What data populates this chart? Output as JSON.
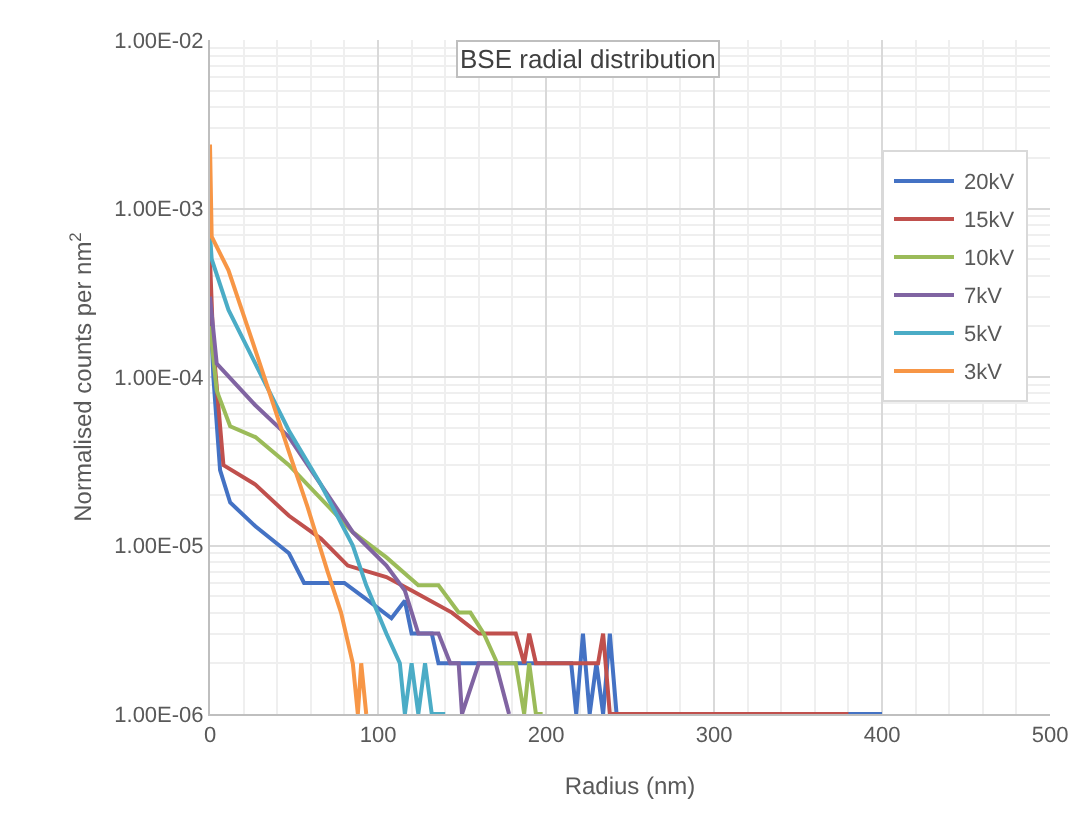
{
  "chart_data": {
    "type": "line",
    "title": "BSE radial distribution",
    "xlabel": "Radius (nm)",
    "ylabel": "Normalised counts per nm$^{2}$",
    "log": "y",
    "xlim": [
      0,
      500
    ],
    "xticks": [
      0,
      100,
      200,
      300,
      400,
      500
    ],
    "ylim": [
      1e-06,
      0.01
    ],
    "yticks": [
      {
        "value": 1e-06,
        "label": "1.00E-06"
      },
      {
        "value": 1e-05,
        "label": "1.00E-05"
      },
      {
        "value": 0.0001,
        "label": "1.00E-04"
      },
      {
        "value": 0.001,
        "label": "1.00E-03"
      },
      {
        "value": 0.01,
        "label": "1.00E-02"
      }
    ],
    "grid": true,
    "legend": "right",
    "marker": "none",
    "line_style": "solid",
    "series": [
      {
        "name": "20kV",
        "color": "#4472c4",
        "x": [
          0,
          2,
          6,
          12,
          27,
          47,
          56,
          60,
          80,
          93,
          108,
          116,
          120,
          132,
          136,
          215,
          218,
          222,
          226,
          230,
          234,
          238,
          242,
          400
        ],
        "values": [
          0.0003,
          0.0001,
          2.8e-05,
          1.8e-05,
          1.3e-05,
          9e-06,
          6e-06,
          6e-06,
          6e-06,
          4.8e-06,
          3.7e-06,
          4.7e-06,
          3e-06,
          3e-06,
          2e-06,
          2e-06,
          1e-06,
          3e-06,
          1e-06,
          2e-06,
          1e-06,
          3e-06,
          1e-06,
          1e-06
        ]
      },
      {
        "name": "15kV",
        "color": "#c0504d",
        "x": [
          0,
          2,
          5,
          8,
          27,
          47,
          66,
          82,
          105,
          120,
          144,
          160,
          182,
          187,
          190,
          194,
          198,
          231,
          234,
          238,
          380
        ],
        "values": [
          0.0005,
          0.00015,
          6.7e-05,
          3e-05,
          2.3e-05,
          1.5e-05,
          1.1e-05,
          7.6e-06,
          6.5e-06,
          5.4e-06,
          4e-06,
          3e-06,
          3e-06,
          2e-06,
          3e-06,
          2e-06,
          2e-06,
          2e-06,
          3e-06,
          1e-06,
          1e-06
        ]
      },
      {
        "name": "10kV",
        "color": "#9bbb59",
        "x": [
          0,
          4,
          12,
          27,
          47,
          66,
          85,
          105,
          124,
          136,
          148,
          155,
          163,
          171,
          182,
          187,
          190,
          194,
          198
        ],
        "values": [
          0.0002,
          8.3e-05,
          5.1e-05,
          4.4e-05,
          3e-05,
          1.9e-05,
          1.2e-05,
          8.5e-06,
          5.8e-06,
          5.8e-06,
          4e-06,
          4e-06,
          3e-06,
          2e-06,
          2e-06,
          1e-06,
          2e-06,
          1e-06,
          1e-06
        ]
      },
      {
        "name": "7kV",
        "color": "#8064a2",
        "x": [
          0,
          4,
          27,
          47,
          66,
          85,
          105,
          116,
          124,
          136,
          143,
          148,
          150,
          160,
          170,
          178
        ],
        "values": [
          0.0003,
          0.00012,
          6.8e-05,
          4.4e-05,
          2.3e-05,
          1.2e-05,
          7.6e-06,
          5.4e-06,
          3e-06,
          3e-06,
          2e-06,
          2e-06,
          1e-06,
          2e-06,
          2e-06,
          1e-06
        ]
      },
      {
        "name": "5kV",
        "color": "#4bacc6",
        "x": [
          0,
          1,
          11,
          27,
          47,
          66,
          85,
          93,
          105,
          113,
          116,
          120,
          124,
          128,
          132,
          140
        ],
        "values": [
          0.0007,
          0.0005,
          0.00025,
          0.00012,
          4.8e-05,
          2.3e-05,
          1e-05,
          5.8e-06,
          3e-06,
          2e-06,
          1e-06,
          2e-06,
          1e-06,
          2e-06,
          1e-06,
          1e-06
        ]
      },
      {
        "name": "3kV",
        "color": "#f79646",
        "x": [
          0,
          1,
          11,
          23,
          35,
          47,
          58,
          70,
          78,
          85,
          88,
          90,
          93
        ],
        "values": [
          0.0024,
          0.00068,
          0.00043,
          0.00019,
          8.3e-05,
          3.6e-05,
          1.7e-05,
          7e-06,
          4e-06,
          2e-06,
          1e-06,
          2e-06,
          1e-06
        ]
      }
    ]
  }
}
